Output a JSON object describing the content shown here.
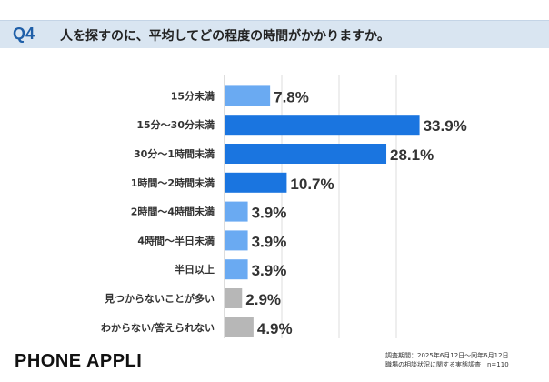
{
  "header": {
    "qnum": "Q4",
    "question": "人を探すのに、平均してどの程度の時間がかかりますか。"
  },
  "footer": {
    "brand": "PHONE APPLI",
    "survey_period": "調査期間：2025年6月12日～同年6月12日",
    "survey_title": "職場の相談状況に関する実態調査｜n=110"
  },
  "colors": {
    "dark_blue": "#1a75e0",
    "light_blue": "#6aaaf2",
    "gray": "#b7b7b7"
  },
  "chart_data": {
    "type": "bar",
    "orientation": "horizontal",
    "categories": [
      "15分未満",
      "15分～30分未満",
      "30分～1時間未満",
      "1時間～2時間未満",
      "2時間～4時間未満",
      "4時間～半日未満",
      "半日以上",
      "見つからないことが多い",
      "わからない/答えられない"
    ],
    "values": [
      7.8,
      33.9,
      28.1,
      10.7,
      3.9,
      3.9,
      3.9,
      2.9,
      4.9
    ],
    "value_labels": [
      "7.8%",
      "33.9%",
      "28.1%",
      "10.7%",
      "3.9%",
      "3.9%",
      "3.9%",
      "2.9%",
      "4.9%"
    ],
    "bar_colors": [
      "light_blue",
      "dark_blue",
      "dark_blue",
      "dark_blue",
      "light_blue",
      "light_blue",
      "light_blue",
      "gray",
      "gray"
    ],
    "xlim": [
      0,
      40
    ],
    "grid": true
  }
}
